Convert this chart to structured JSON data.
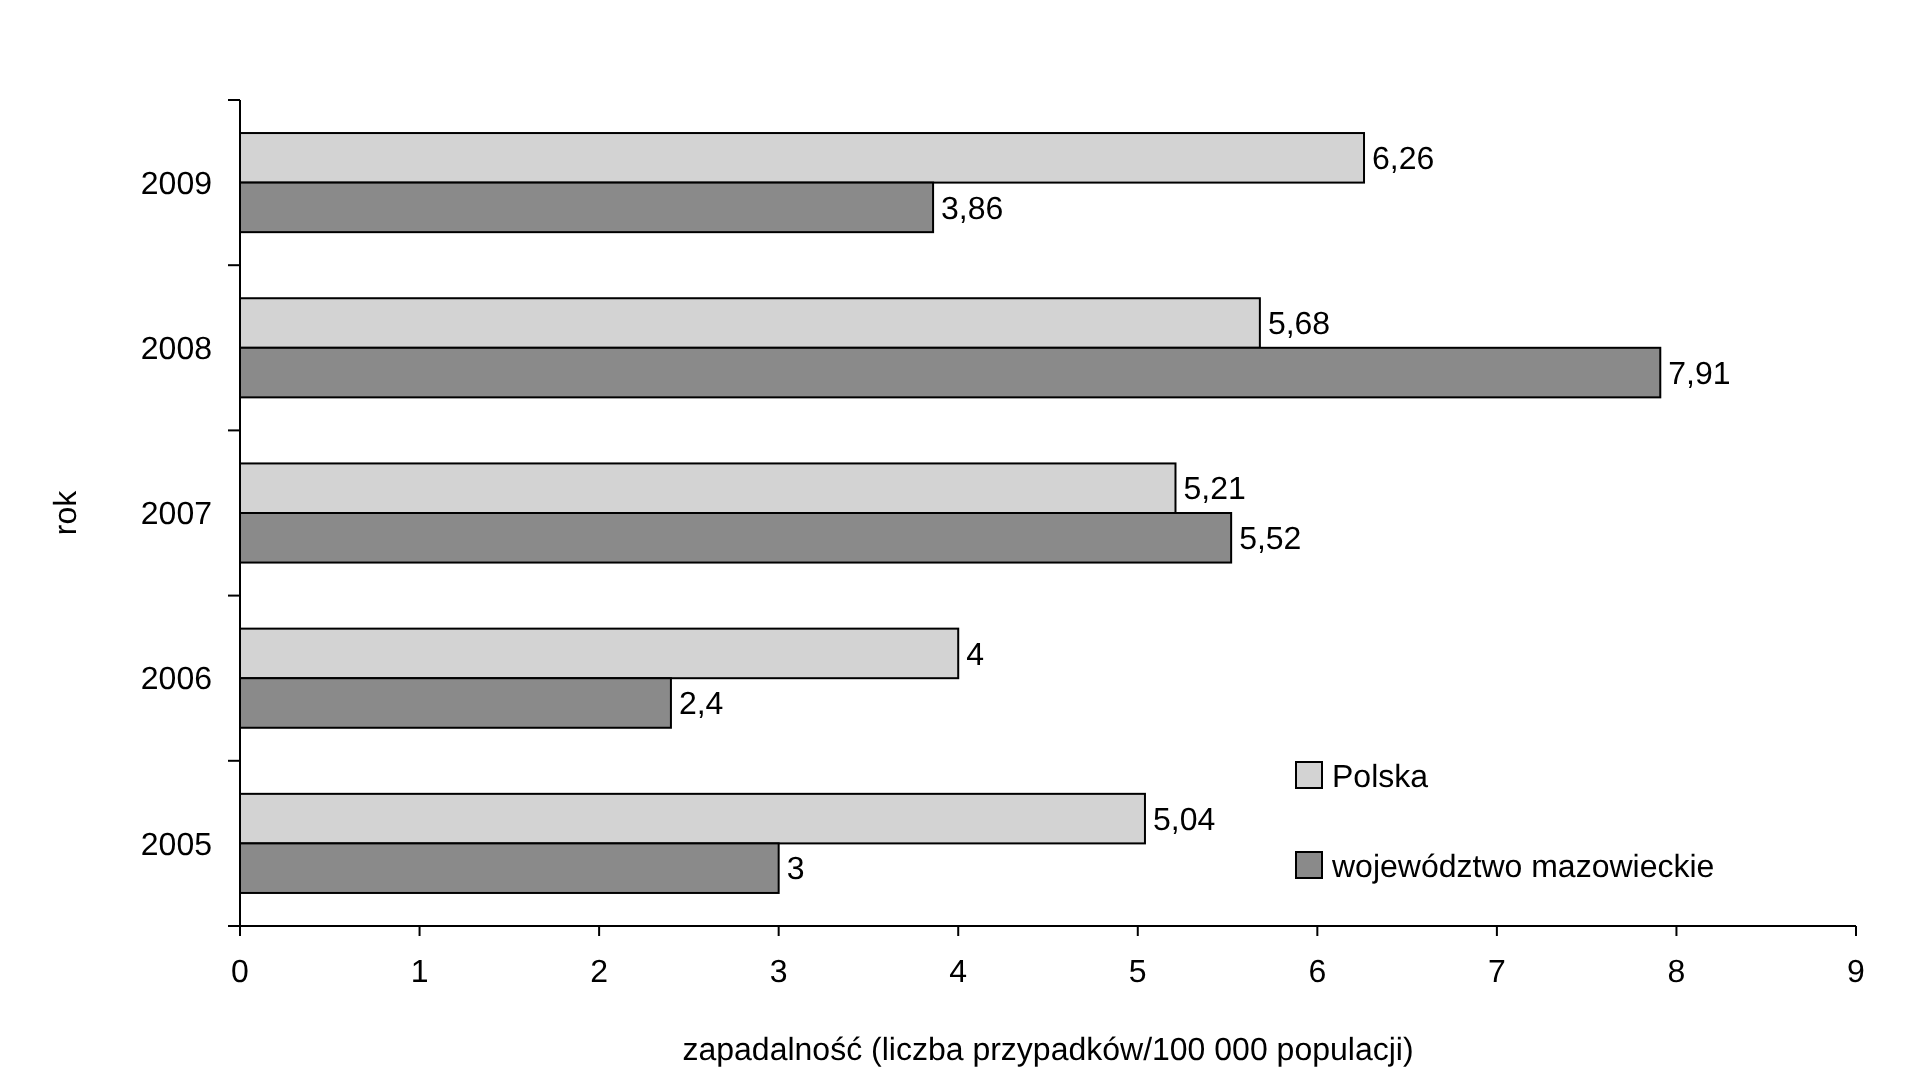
{
  "chart_data": {
    "type": "bar",
    "orientation": "horizontal",
    "xlabel": "zapadalność (liczba przypadków/100 000 populacji)",
    "ylabel": "rok",
    "categories": [
      "2009",
      "2008",
      "2007",
      "2006",
      "2005"
    ],
    "series": [
      {
        "name": "Polska",
        "color": "#d3d3d3",
        "values": [
          6.26,
          5.68,
          5.21,
          4,
          5.04
        ],
        "value_labels": [
          "6,26",
          "5,68",
          "5,21",
          "4",
          "5,04"
        ]
      },
      {
        "name": "województwo mazowieckie",
        "color": "#8a8a8a",
        "values": [
          3.86,
          7.91,
          5.52,
          2.4,
          3
        ],
        "value_labels": [
          "3,86",
          "7,91",
          "5,52",
          "2,4",
          "3"
        ]
      }
    ],
    "xlim": [
      0,
      9
    ],
    "xticks": [
      0,
      1,
      2,
      3,
      4,
      5,
      6,
      7,
      8,
      9
    ],
    "grid": false,
    "legend": "bottom right"
  }
}
